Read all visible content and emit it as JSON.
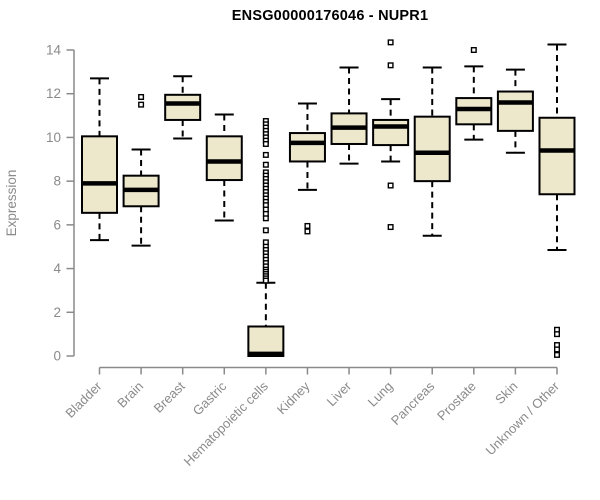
{
  "chart_data": {
    "type": "boxplot",
    "title": "ENSG00000176046 - NUPR1",
    "ylabel": "Expression",
    "xlabel": "",
    "ylim": [
      0,
      14
    ],
    "yticks": [
      0,
      2,
      4,
      6,
      8,
      10,
      12,
      14
    ],
    "grid": false,
    "legend": "none",
    "categories": [
      "Bladder",
      "Brain",
      "Breast",
      "Gastric",
      "Hematopoietic cells",
      "Kidney",
      "Liver",
      "Lung",
      "Pancreas",
      "Prostate",
      "Skin",
      "Unknown / Other"
    ],
    "series": [
      {
        "name": "Bladder",
        "low": 5.3,
        "q1": 6.55,
        "median": 7.9,
        "q3": 10.05,
        "high": 12.7,
        "outliers": []
      },
      {
        "name": "Brain",
        "low": 5.05,
        "q1": 6.85,
        "median": 7.6,
        "q3": 8.25,
        "high": 9.45,
        "outliers": [
          11.85,
          11.5
        ]
      },
      {
        "name": "Breast",
        "low": 9.95,
        "q1": 10.8,
        "median": 11.55,
        "q3": 11.95,
        "high": 12.8,
        "outliers": []
      },
      {
        "name": "Gastric",
        "low": 6.2,
        "q1": 8.05,
        "median": 8.9,
        "q3": 10.05,
        "high": 11.05,
        "outliers": []
      },
      {
        "name": "Hematopoietic cells",
        "low": 0.0,
        "q1": 0.0,
        "median": 0.1,
        "q3": 1.35,
        "high": 3.35,
        "outliers": [
          10.75,
          10.6,
          10.45,
          10.3,
          10.15,
          10.0,
          9.85,
          9.7,
          9.2,
          8.75,
          8.4,
          8.25,
          8.1,
          7.95,
          7.8,
          7.65,
          7.5,
          7.35,
          7.2,
          7.05,
          6.9,
          6.7,
          6.5,
          6.3,
          5.75,
          5.2,
          5.0,
          4.85,
          4.7,
          4.55,
          4.4,
          4.25,
          4.1,
          3.95,
          3.85,
          3.75,
          3.65,
          3.55,
          3.45
        ]
      },
      {
        "name": "Kidney",
        "low": 7.6,
        "q1": 8.9,
        "median": 9.75,
        "q3": 10.2,
        "high": 11.55,
        "outliers": [
          5.95,
          5.7
        ]
      },
      {
        "name": "Liver",
        "low": 8.8,
        "q1": 9.7,
        "median": 10.45,
        "q3": 11.1,
        "high": 13.2,
        "outliers": []
      },
      {
        "name": "Lung",
        "low": 8.9,
        "q1": 9.65,
        "median": 10.5,
        "q3": 10.8,
        "high": 11.75,
        "outliers": [
          14.35,
          13.3,
          7.8,
          5.9
        ]
      },
      {
        "name": "Pancreas",
        "low": 5.5,
        "q1": 8.0,
        "median": 9.3,
        "q3": 10.95,
        "high": 13.2,
        "outliers": []
      },
      {
        "name": "Prostate",
        "low": 9.9,
        "q1": 10.6,
        "median": 11.3,
        "q3": 11.8,
        "high": 13.25,
        "outliers": [
          14.0
        ]
      },
      {
        "name": "Skin",
        "low": 9.3,
        "q1": 10.3,
        "median": 11.6,
        "q3": 12.1,
        "high": 13.1,
        "outliers": []
      },
      {
        "name": "Unknown / Other",
        "low": 4.85,
        "q1": 7.4,
        "median": 9.4,
        "q3": 10.9,
        "high": 14.25,
        "outliers": [
          1.2,
          1.0,
          0.5,
          0.3,
          0.05
        ]
      }
    ],
    "colors": {
      "box_fill": "#EDE7CB",
      "box_stroke": "#000000",
      "median": "#000000",
      "axis": "#8A8A8A",
      "title": "#000000",
      "background": "#FFFFFF"
    }
  }
}
